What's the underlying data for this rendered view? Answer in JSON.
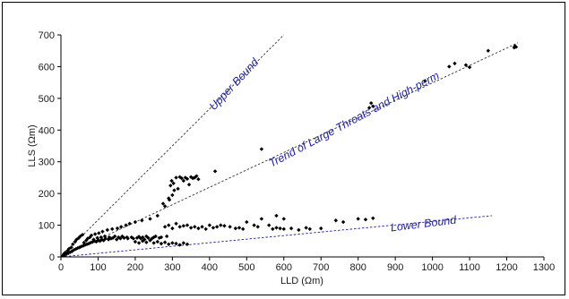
{
  "chart_data": {
    "type": "scatter",
    "title": "",
    "xlabel": "LLD (Ωm)",
    "ylabel": "LLS (Ωm)",
    "xlim": [
      0,
      1300
    ],
    "ylim": [
      0,
      700
    ],
    "x_ticks": [
      0,
      100,
      200,
      300,
      400,
      500,
      600,
      700,
      800,
      900,
      1000,
      1100,
      1200,
      1300
    ],
    "y_ticks": [
      0,
      100,
      200,
      300,
      400,
      500,
      600,
      700
    ],
    "grid": false,
    "legend": "none",
    "marker_color": "#000000",
    "series": [
      {
        "points": [
          [
            5,
            4
          ],
          [
            8,
            10
          ],
          [
            10,
            6
          ],
          [
            12,
            14
          ],
          [
            15,
            9
          ],
          [
            18,
            20
          ],
          [
            20,
            12
          ],
          [
            22,
            26
          ],
          [
            25,
            15
          ],
          [
            28,
            30
          ],
          [
            30,
            18
          ],
          [
            32,
            40
          ],
          [
            35,
            22
          ],
          [
            38,
            48
          ],
          [
            40,
            25
          ],
          [
            42,
            55
          ],
          [
            45,
            28
          ],
          [
            48,
            60
          ],
          [
            50,
            30
          ],
          [
            52,
            65
          ],
          [
            55,
            33
          ],
          [
            58,
            70
          ],
          [
            60,
            35
          ],
          [
            62,
            45
          ],
          [
            65,
            38
          ],
          [
            68,
            52
          ],
          [
            70,
            40
          ],
          [
            72,
            58
          ],
          [
            75,
            42
          ],
          [
            78,
            62
          ],
          [
            80,
            45
          ],
          [
            82,
            68
          ],
          [
            85,
            47
          ],
          [
            88,
            55
          ],
          [
            90,
            50
          ],
          [
            92,
            72
          ],
          [
            95,
            48
          ],
          [
            98,
            60
          ],
          [
            100,
            52
          ],
          [
            102,
            75
          ],
          [
            105,
            50
          ],
          [
            108,
            62
          ],
          [
            110,
            55
          ],
          [
            112,
            80
          ],
          [
            115,
            52
          ],
          [
            118,
            65
          ],
          [
            120,
            58
          ],
          [
            125,
            85
          ],
          [
            128,
            55
          ],
          [
            130,
            62
          ],
          [
            135,
            58
          ],
          [
            138,
            88
          ],
          [
            140,
            60
          ],
          [
            145,
            65
          ],
          [
            150,
            55
          ],
          [
            152,
            90
          ],
          [
            155,
            62
          ],
          [
            160,
            58
          ],
          [
            162,
            95
          ],
          [
            165,
            65
          ],
          [
            170,
            60
          ],
          [
            175,
            100
          ],
          [
            178,
            62
          ],
          [
            180,
            58
          ],
          [
            185,
            105
          ],
          [
            190,
            62
          ],
          [
            195,
            58
          ],
          [
            200,
            110
          ],
          [
            205,
            60
          ],
          [
            210,
            64
          ],
          [
            215,
            58
          ],
          [
            218,
            115
          ],
          [
            220,
            62
          ],
          [
            225,
            55
          ],
          [
            230,
            65
          ],
          [
            235,
            60
          ],
          [
            240,
            120
          ],
          [
            245,
            58
          ],
          [
            250,
            62
          ],
          [
            255,
            65
          ],
          [
            260,
            130
          ],
          [
            265,
            60
          ],
          [
            270,
            62
          ],
          [
            275,
            168
          ],
          [
            280,
            160
          ],
          [
            285,
            65
          ],
          [
            290,
            185
          ],
          [
            292,
            180
          ],
          [
            295,
            225
          ],
          [
            298,
            240
          ],
          [
            300,
            195
          ],
          [
            303,
            232
          ],
          [
            305,
            210
          ],
          [
            310,
            250
          ],
          [
            315,
            215
          ],
          [
            320,
            252
          ],
          [
            325,
            248
          ],
          [
            330,
            240
          ],
          [
            335,
            250
          ],
          [
            340,
            246
          ],
          [
            345,
            228
          ],
          [
            350,
            252
          ],
          [
            355,
            248
          ],
          [
            360,
            250
          ],
          [
            365,
            255
          ],
          [
            370,
            245
          ],
          [
            280,
            95
          ],
          [
            290,
            100
          ],
          [
            300,
            90
          ],
          [
            310,
            105
          ],
          [
            320,
            95
          ],
          [
            330,
            98
          ],
          [
            340,
            100
          ],
          [
            350,
            92
          ],
          [
            360,
            95
          ],
          [
            370,
            90
          ],
          [
            380,
            95
          ],
          [
            390,
            88
          ],
          [
            400,
            100
          ],
          [
            410,
            92
          ],
          [
            420,
            95
          ],
          [
            430,
            100
          ],
          [
            440,
            98
          ],
          [
            455,
            95
          ],
          [
            470,
            90
          ],
          [
            480,
            92
          ],
          [
            490,
            88
          ],
          [
            500,
            110
          ],
          [
            520,
            100
          ],
          [
            530,
            95
          ],
          [
            540,
            120
          ],
          [
            560,
            100
          ],
          [
            570,
            88
          ],
          [
            580,
            92
          ],
          [
            590,
            90
          ],
          [
            600,
            88
          ],
          [
            620,
            90
          ],
          [
            640,
            85
          ],
          [
            660,
            92
          ],
          [
            670,
            88
          ],
          [
            700,
            90
          ],
          [
            740,
            115
          ],
          [
            760,
            110
          ],
          [
            800,
            120
          ],
          [
            820,
            118
          ],
          [
            840,
            122
          ],
          [
            200,
            48
          ],
          [
            210,
            44
          ],
          [
            220,
            50
          ],
          [
            230,
            46
          ],
          [
            240,
            52
          ],
          [
            250,
            44
          ],
          [
            260,
            48
          ],
          [
            270,
            42
          ],
          [
            280,
            46
          ],
          [
            290,
            40
          ],
          [
            300,
            44
          ],
          [
            310,
            42
          ],
          [
            320,
            38
          ],
          [
            330,
            44
          ],
          [
            340,
            40
          ],
          [
            415,
            270
          ],
          [
            540,
            340
          ],
          [
            830,
            470
          ],
          [
            835,
            485
          ],
          [
            840,
            475
          ],
          [
            980,
            555
          ],
          [
            1045,
            600
          ],
          [
            1060,
            610
          ],
          [
            1090,
            605
          ],
          [
            1100,
            598
          ],
          [
            1150,
            650
          ],
          [
            1220,
            660
          ],
          [
            1222,
            665
          ],
          [
            1225,
            662
          ],
          [
            580,
            130
          ],
          [
            600,
            120
          ]
        ]
      }
    ],
    "annotations": [
      {
        "text": "Upper Bound",
        "line": [
          [
            0,
            0
          ],
          [
            600,
            700
          ]
        ]
      },
      {
        "text": "Trend of Large Throats and High-perm",
        "line": [
          [
            0,
            0
          ],
          [
            1230,
            675
          ]
        ]
      },
      {
        "text": "Lower Bound",
        "line": [
          [
            0,
            0
          ],
          [
            1160,
            130
          ]
        ]
      }
    ],
    "annotation_color": "#1f1f9e"
  }
}
